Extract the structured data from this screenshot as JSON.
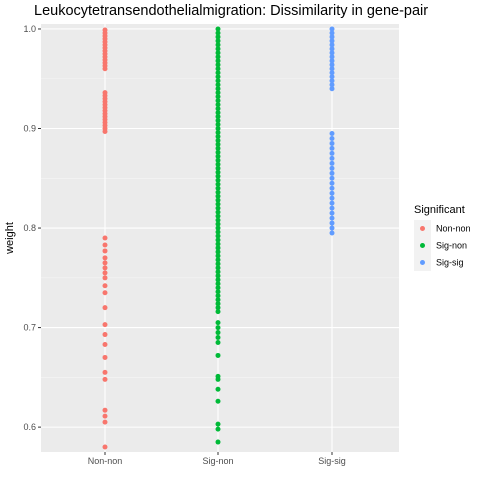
{
  "chart_data": {
    "type": "scatter",
    "title": "Leukocytetransendothelialmigration: Dissimilarity in gene-pair",
    "xlabel": "",
    "ylabel": "weight",
    "categories": [
      "Non-non",
      "Sig-non",
      "Sig-sig"
    ],
    "ylim": [
      0.575,
      1.005
    ],
    "yticks": [
      0.6,
      0.7,
      0.8,
      0.9,
      1.0
    ],
    "ytick_labels": [
      "0.6",
      "0.7",
      "0.8",
      "0.9",
      "1.0"
    ],
    "grid": true,
    "legend": {
      "title": "Significant",
      "position": "right",
      "entries": [
        "Non-non",
        "Sig-non",
        "Sig-sig"
      ]
    },
    "colors": {
      "Non-non": "#F8766D",
      "Sig-non": "#00BA38",
      "Sig-sig": "#619CFF"
    },
    "series": [
      {
        "name": "Non-non",
        "x": "Non-non",
        "values": [
          0.58,
          0.605,
          0.611,
          0.617,
          0.648,
          0.655,
          0.67,
          0.683,
          0.693,
          0.703,
          0.72,
          0.735,
          0.742,
          0.75,
          0.755,
          0.76,
          0.765,
          0.77,
          0.777,
          0.783,
          0.79,
          0.897,
          0.9,
          0.903,
          0.906,
          0.909,
          0.912,
          0.915,
          0.918,
          0.921,
          0.924,
          0.927,
          0.93,
          0.933,
          0.936,
          0.96,
          0.963,
          0.966,
          0.969,
          0.972,
          0.975,
          0.978,
          0.981,
          0.984,
          0.987,
          0.99,
          0.993,
          0.996,
          0.999
        ]
      },
      {
        "name": "Sig-non",
        "x": "Sig-non",
        "values": [
          0.585,
          0.598,
          0.603,
          0.626,
          0.638,
          0.648,
          0.651,
          0.672,
          0.685,
          0.69,
          0.695,
          0.7,
          0.705,
          0.716,
          0.72,
          0.724,
          0.728,
          0.732,
          0.736,
          0.74,
          0.744,
          0.748,
          0.752,
          0.756,
          0.76,
          0.764,
          0.768,
          0.772,
          0.776,
          0.78,
          0.784,
          0.788,
          0.792,
          0.796,
          0.8,
          0.804,
          0.808,
          0.812,
          0.816,
          0.82,
          0.824,
          0.828,
          0.832,
          0.836,
          0.84,
          0.844,
          0.848,
          0.852,
          0.856,
          0.86,
          0.864,
          0.868,
          0.872,
          0.876,
          0.88,
          0.884,
          0.888,
          0.892,
          0.896,
          0.9,
          0.904,
          0.908,
          0.912,
          0.916,
          0.92,
          0.924,
          0.928,
          0.932,
          0.936,
          0.94,
          0.944,
          0.948,
          0.952,
          0.956,
          0.96,
          0.964,
          0.968,
          0.972,
          0.976,
          0.98,
          0.984,
          0.988,
          0.992,
          0.996,
          1.0
        ]
      },
      {
        "name": "Sig-sig",
        "x": "Sig-sig",
        "values": [
          0.795,
          0.8,
          0.805,
          0.81,
          0.815,
          0.82,
          0.825,
          0.83,
          0.835,
          0.84,
          0.845,
          0.85,
          0.855,
          0.86,
          0.865,
          0.87,
          0.875,
          0.88,
          0.885,
          0.89,
          0.895,
          0.94,
          0.944,
          0.948,
          0.952,
          0.956,
          0.96,
          0.964,
          0.968,
          0.972,
          0.976,
          0.98,
          0.984,
          0.988,
          0.992,
          0.996,
          1.0
        ]
      }
    ]
  }
}
